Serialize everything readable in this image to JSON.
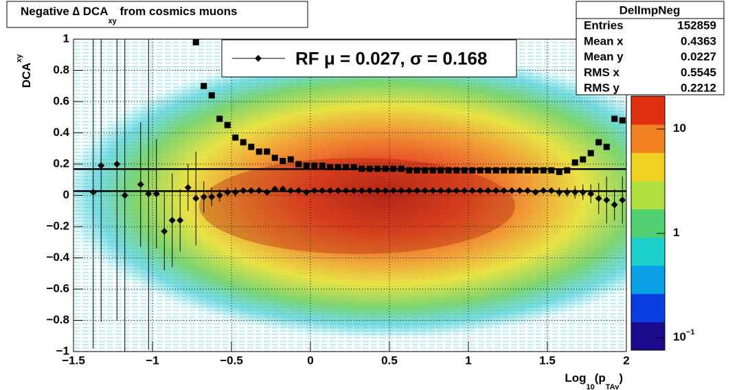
{
  "chart_data": {
    "type": "profile",
    "title": {
      "text": "Negative ∆ DCA",
      "subscript": "xy",
      "suffix": " from cosmics muons"
    },
    "ylabel": {
      "text": "DCA",
      "subscript": "xy"
    },
    "xlabel": {
      "text": "Log",
      "subscript": "10",
      "mid": "(p",
      "subscript2": "TAv",
      "end": ")"
    },
    "xlim": [
      -1.5,
      2
    ],
    "ylim": [
      -1,
      1
    ],
    "xticks": [
      {
        "value": -1.5,
        "label": "−1.5"
      },
      {
        "value": -1,
        "label": "−1"
      },
      {
        "value": -0.5,
        "label": "−0.5"
      },
      0,
      0.5,
      1,
      1.5,
      2
    ],
    "yticks": [
      {
        "value": -1,
        "label": "−1"
      },
      {
        "value": -0.8,
        "label": "−0.8"
      },
      {
        "value": -0.6,
        "label": "−0.6"
      },
      {
        "value": -0.4,
        "label": "−0.4"
      },
      {
        "value": -0.2,
        "label": "−0.2"
      },
      0,
      0.2,
      0.4,
      0.6,
      0.8,
      1
    ],
    "grid": true,
    "zlog": true,
    "zlim": [
      0.076,
      20.7
    ],
    "zticks": [
      {
        "value": 0.1,
        "label": "10",
        "exponent": "−1"
      },
      1,
      10
    ],
    "palette": [
      "#1a0a8c",
      "#0a3ee0",
      "#0aa0e8",
      "#1ad0c8",
      "#50d070",
      "#b0e040",
      "#f0d020",
      "#f08020",
      "#e03010"
    ],
    "x": [
      -1.375,
      -1.325,
      -1.275,
      -1.225,
      -1.175,
      -1.125,
      -1.075,
      -1.025,
      -0.975,
      -0.925,
      -0.875,
      -0.825,
      -0.775,
      -0.725,
      -0.675,
      -0.625,
      -0.575,
      -0.525,
      -0.475,
      -0.425,
      -0.375,
      -0.325,
      -0.275,
      -0.225,
      -0.175,
      -0.125,
      -0.075,
      -0.025,
      0.025,
      0.075,
      0.125,
      0.175,
      0.225,
      0.275,
      0.325,
      0.375,
      0.425,
      0.475,
      0.525,
      0.575,
      0.625,
      0.675,
      0.725,
      0.775,
      0.825,
      0.875,
      0.925,
      0.975,
      1.025,
      1.075,
      1.125,
      1.175,
      1.225,
      1.275,
      1.325,
      1.375,
      1.425,
      1.475,
      1.525,
      1.575,
      1.625,
      1.675,
      1.725,
      1.775,
      1.825,
      1.875,
      1.925,
      1.975
    ],
    "series": [
      {
        "name": "sigma",
        "marker": "square",
        "color": "#000000",
        "values": [
          null,
          null,
          null,
          null,
          null,
          null,
          null,
          null,
          null,
          null,
          null,
          null,
          null,
          0.98,
          0.7,
          0.64,
          0.49,
          0.45,
          0.37,
          0.34,
          0.31,
          0.28,
          0.28,
          0.24,
          0.22,
          0.23,
          0.2,
          0.19,
          0.19,
          0.19,
          0.18,
          0.18,
          0.18,
          0.18,
          0.17,
          0.17,
          0.17,
          0.17,
          0.17,
          0.17,
          0.16,
          0.16,
          0.16,
          0.16,
          0.16,
          0.16,
          0.16,
          0.16,
          0.16,
          0.16,
          0.16,
          0.16,
          0.16,
          0.16,
          0.16,
          0.16,
          0.16,
          0.16,
          0.16,
          0.15,
          0.16,
          0.21,
          0.23,
          0.27,
          0.34,
          0.31,
          0.49,
          0.48
        ]
      },
      {
        "name": "mean",
        "marker": "diamond",
        "color": "#000000",
        "values": [
          0.02,
          0.19,
          null,
          0.2,
          0.0,
          null,
          0.07,
          0.01,
          0.01,
          -0.23,
          -0.16,
          -0.16,
          0.05,
          -0.02,
          -0.01,
          -0.01,
          0.0,
          0.02,
          0.02,
          0.03,
          0.03,
          0.03,
          0.02,
          0.04,
          0.04,
          0.03,
          0.03,
          0.02,
          0.03,
          0.03,
          0.03,
          0.03,
          0.03,
          0.03,
          0.03,
          0.03,
          0.03,
          0.03,
          0.03,
          0.03,
          0.03,
          0.03,
          0.03,
          0.03,
          0.03,
          0.03,
          0.03,
          0.03,
          0.03,
          0.03,
          0.03,
          0.03,
          0.03,
          0.03,
          0.03,
          0.03,
          0.02,
          0.03,
          0.03,
          0.02,
          0.02,
          0.02,
          0.02,
          0.01,
          -0.02,
          -0.03,
          -0.06,
          -0.03
        ],
        "errors": [
          1.0,
          1.0,
          null,
          1.0,
          1.0,
          null,
          0.4,
          1.0,
          0.35,
          0.25,
          0.3,
          0.2,
          0.15,
          0.3,
          0.1,
          0.06,
          0.04,
          0.03,
          0.03,
          0.02,
          0.02,
          0.02,
          0.02,
          0.02,
          0.02,
          0.02,
          0.02,
          0.02,
          0.02,
          0.02,
          0.02,
          0.02,
          0.02,
          0.02,
          0.02,
          0.02,
          0.02,
          0.02,
          0.02,
          0.02,
          0.02,
          0.02,
          0.02,
          0.02,
          0.02,
          0.02,
          0.02,
          0.02,
          0.02,
          0.02,
          0.02,
          0.02,
          0.02,
          0.02,
          0.02,
          0.02,
          0.02,
          0.02,
          0.02,
          0.03,
          0.03,
          0.04,
          0.05,
          0.06,
          0.1,
          0.15,
          0.1,
          0.15
        ]
      }
    ],
    "fit": {
      "label": "RF μ = ",
      "mu": 0.027,
      "sep": ", σ = ",
      "sigma": 0.168
    },
    "stats": {
      "title": "DelImpNeg",
      "rows": [
        [
          "Entries",
          152859
        ],
        [
          "Mean x",
          0.4363
        ],
        [
          "Mean y",
          0.0227
        ],
        [
          "RMS x",
          0.5545
        ],
        [
          "RMS y",
          0.2212
        ]
      ]
    }
  }
}
